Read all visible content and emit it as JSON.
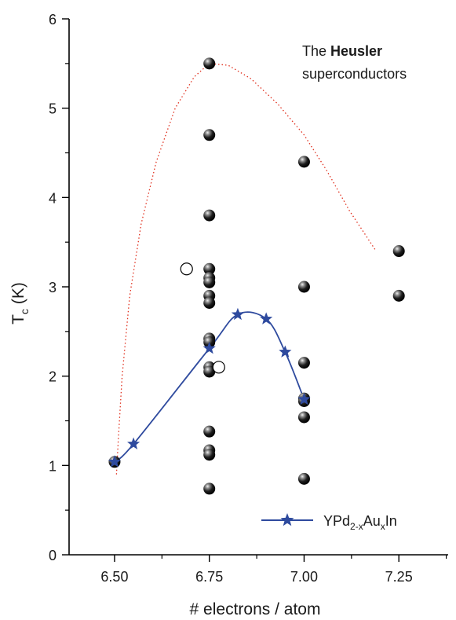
{
  "chart_data": {
    "type": "scatter",
    "xlabel": "# electrons / atom",
    "ylabel_main": "T",
    "ylabel_sub": "c",
    "ylabel_unit": " (K)",
    "xlim": [
      6.38,
      7.38
    ],
    "ylim": [
      0,
      6
    ],
    "xticks": [
      6.5,
      6.75,
      7.0,
      7.25
    ],
    "xtick_labels": [
      "6.50",
      "6.75",
      "7.00",
      "7.25"
    ],
    "yticks": [
      0,
      1,
      2,
      3,
      4,
      5,
      6
    ],
    "ytick_labels": [
      "0",
      "1",
      "2",
      "3",
      "4",
      "5",
      "6"
    ],
    "annotation": {
      "line1_prefix": "The ",
      "line1_bold": "Heusler",
      "line2": "superconductors"
    },
    "series": [
      {
        "marker": "filled-sphere",
        "points": [
          [
            6.75,
            5.5
          ],
          [
            6.75,
            4.7
          ],
          [
            6.75,
            3.8
          ],
          [
            6.75,
            3.2
          ],
          [
            6.75,
            3.1
          ],
          [
            6.75,
            3.05
          ],
          [
            6.75,
            2.9
          ],
          [
            6.75,
            2.82
          ],
          [
            6.75,
            2.42
          ],
          [
            6.75,
            2.38
          ],
          [
            6.75,
            2.1
          ],
          [
            6.75,
            2.05
          ],
          [
            6.75,
            1.38
          ],
          [
            6.75,
            1.17
          ],
          [
            6.75,
            1.12
          ],
          [
            6.75,
            0.74
          ],
          [
            7.0,
            4.4
          ],
          [
            7.0,
            3.0
          ],
          [
            7.0,
            2.15
          ],
          [
            7.0,
            1.75
          ],
          [
            7.0,
            1.72
          ],
          [
            7.0,
            1.54
          ],
          [
            7.0,
            0.85
          ],
          [
            7.25,
            3.4
          ],
          [
            7.25,
            2.9
          ],
          [
            6.5,
            1.04
          ]
        ]
      },
      {
        "marker": "open-circle",
        "points": [
          [
            6.69,
            3.2
          ],
          [
            6.775,
            2.1
          ]
        ]
      },
      {
        "name_base": "YPd",
        "name_sub1": "2-x",
        "name_mid": "Au",
        "name_sub2": "x",
        "name_end": "In",
        "marker": "star",
        "color": "#2e4a9e",
        "points": [
          [
            6.5,
            1.04
          ],
          [
            6.55,
            1.24
          ],
          [
            6.75,
            2.31
          ],
          [
            6.825,
            2.69
          ],
          [
            6.9,
            2.64
          ],
          [
            6.95,
            2.27
          ],
          [
            7.0,
            1.74
          ]
        ]
      }
    ],
    "guide_curve": {
      "style": "dotted",
      "color": "#e0301e",
      "points": [
        [
          6.505,
          0.9
        ],
        [
          6.51,
          1.3
        ],
        [
          6.52,
          2.0
        ],
        [
          6.54,
          2.9
        ],
        [
          6.57,
          3.7
        ],
        [
          6.61,
          4.4
        ],
        [
          6.66,
          5.0
        ],
        [
          6.71,
          5.35
        ],
        [
          6.75,
          5.5
        ],
        [
          6.8,
          5.48
        ],
        [
          6.86,
          5.33
        ],
        [
          6.93,
          5.05
        ],
        [
          7.0,
          4.7
        ],
        [
          7.06,
          4.3
        ],
        [
          7.12,
          3.85
        ],
        [
          7.19,
          3.4
        ]
      ]
    }
  }
}
